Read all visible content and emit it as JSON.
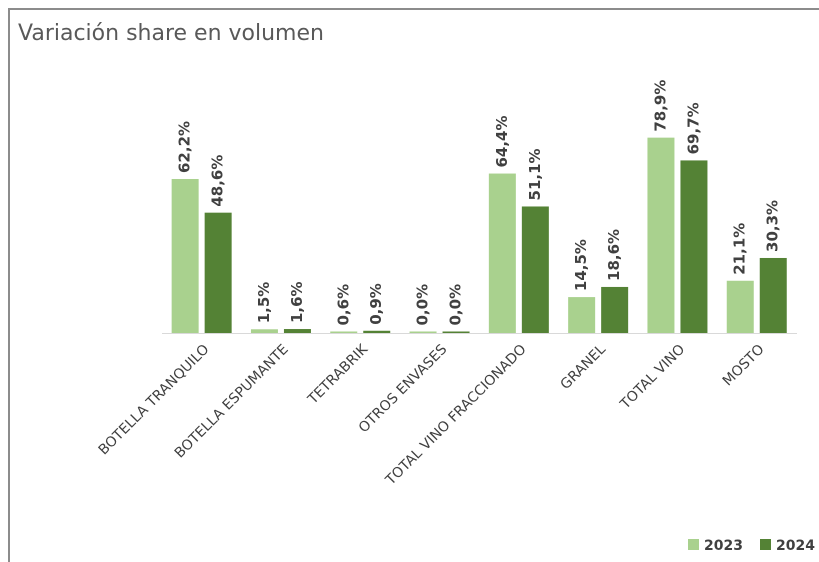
{
  "chart_data": {
    "type": "bar",
    "title": "Variación share en volumen",
    "categories": [
      "BOTELLA TRANQUILO",
      "BOTELLA ESPUMANTE",
      "TETRABRIK",
      "OTROS ENVASES",
      "TOTAL VINO FRACCIONADO",
      "GRANEL",
      "TOTAL VINO",
      "MOSTO"
    ],
    "series": [
      {
        "name": "2023",
        "color": "#a9d18e",
        "values": [
          62.2,
          1.5,
          0.6,
          0.0,
          64.4,
          14.5,
          78.9,
          21.1
        ],
        "value_labels": [
          "62,2%",
          "1,5%",
          "0,6%",
          "0,0%",
          "64,4%",
          "14,5%",
          "78,9%",
          "21,1%"
        ]
      },
      {
        "name": "2024",
        "color": "#548235",
        "values": [
          48.6,
          1.6,
          0.9,
          0.0,
          51.1,
          18.6,
          69.7,
          30.3
        ],
        "value_labels": [
          "48,6%",
          "1,6%",
          "0,9%",
          "0,0%",
          "51,1%",
          "18,6%",
          "69,7%",
          "30,3%"
        ]
      }
    ],
    "ylim": [
      0,
      100
    ],
    "legend": "bottom-right"
  }
}
